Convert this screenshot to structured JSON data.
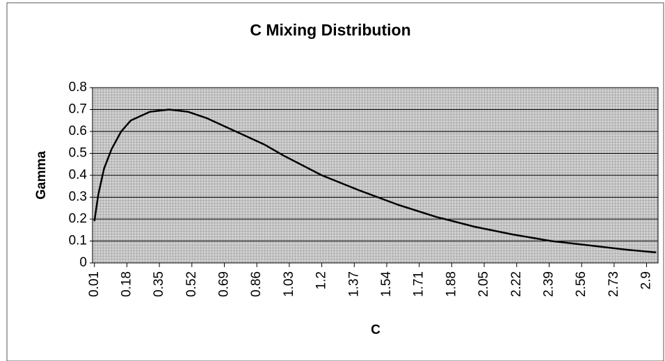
{
  "chart_data": {
    "type": "line",
    "title": "C Mixing Distribution",
    "x_label": "C",
    "y_label": "Gamma",
    "series": [
      {
        "name": "Gamma",
        "color": "#000000",
        "x": [
          0.01,
          0.03,
          0.06,
          0.1,
          0.15,
          0.2,
          0.3,
          0.4,
          0.5,
          0.6,
          0.7,
          0.8,
          0.9,
          1.0,
          1.2,
          1.4,
          1.6,
          1.8,
          2.0,
          2.2,
          2.4,
          2.6,
          2.8,
          2.95
        ],
        "values": [
          0.19,
          0.31,
          0.43,
          0.52,
          0.6,
          0.65,
          0.69,
          0.7,
          0.69,
          0.66,
          0.62,
          0.58,
          0.54,
          0.49,
          0.4,
          0.33,
          0.265,
          0.21,
          0.165,
          0.13,
          0.1,
          0.08,
          0.06,
          0.048
        ]
      }
    ],
    "xlim": [
      0,
      2.96
    ],
    "xticks": [
      0.01,
      0.18,
      0.35,
      0.52,
      0.69,
      0.86,
      1.03,
      1.2,
      1.37,
      1.54,
      1.71,
      1.88,
      2.05,
      2.22,
      2.39,
      2.56,
      2.73,
      2.9
    ],
    "ylim": [
      0,
      0.8
    ],
    "yticks": [
      0,
      0.1,
      0.2,
      0.3,
      0.4,
      0.5,
      0.6,
      0.7,
      0.8
    ],
    "grid": true
  }
}
